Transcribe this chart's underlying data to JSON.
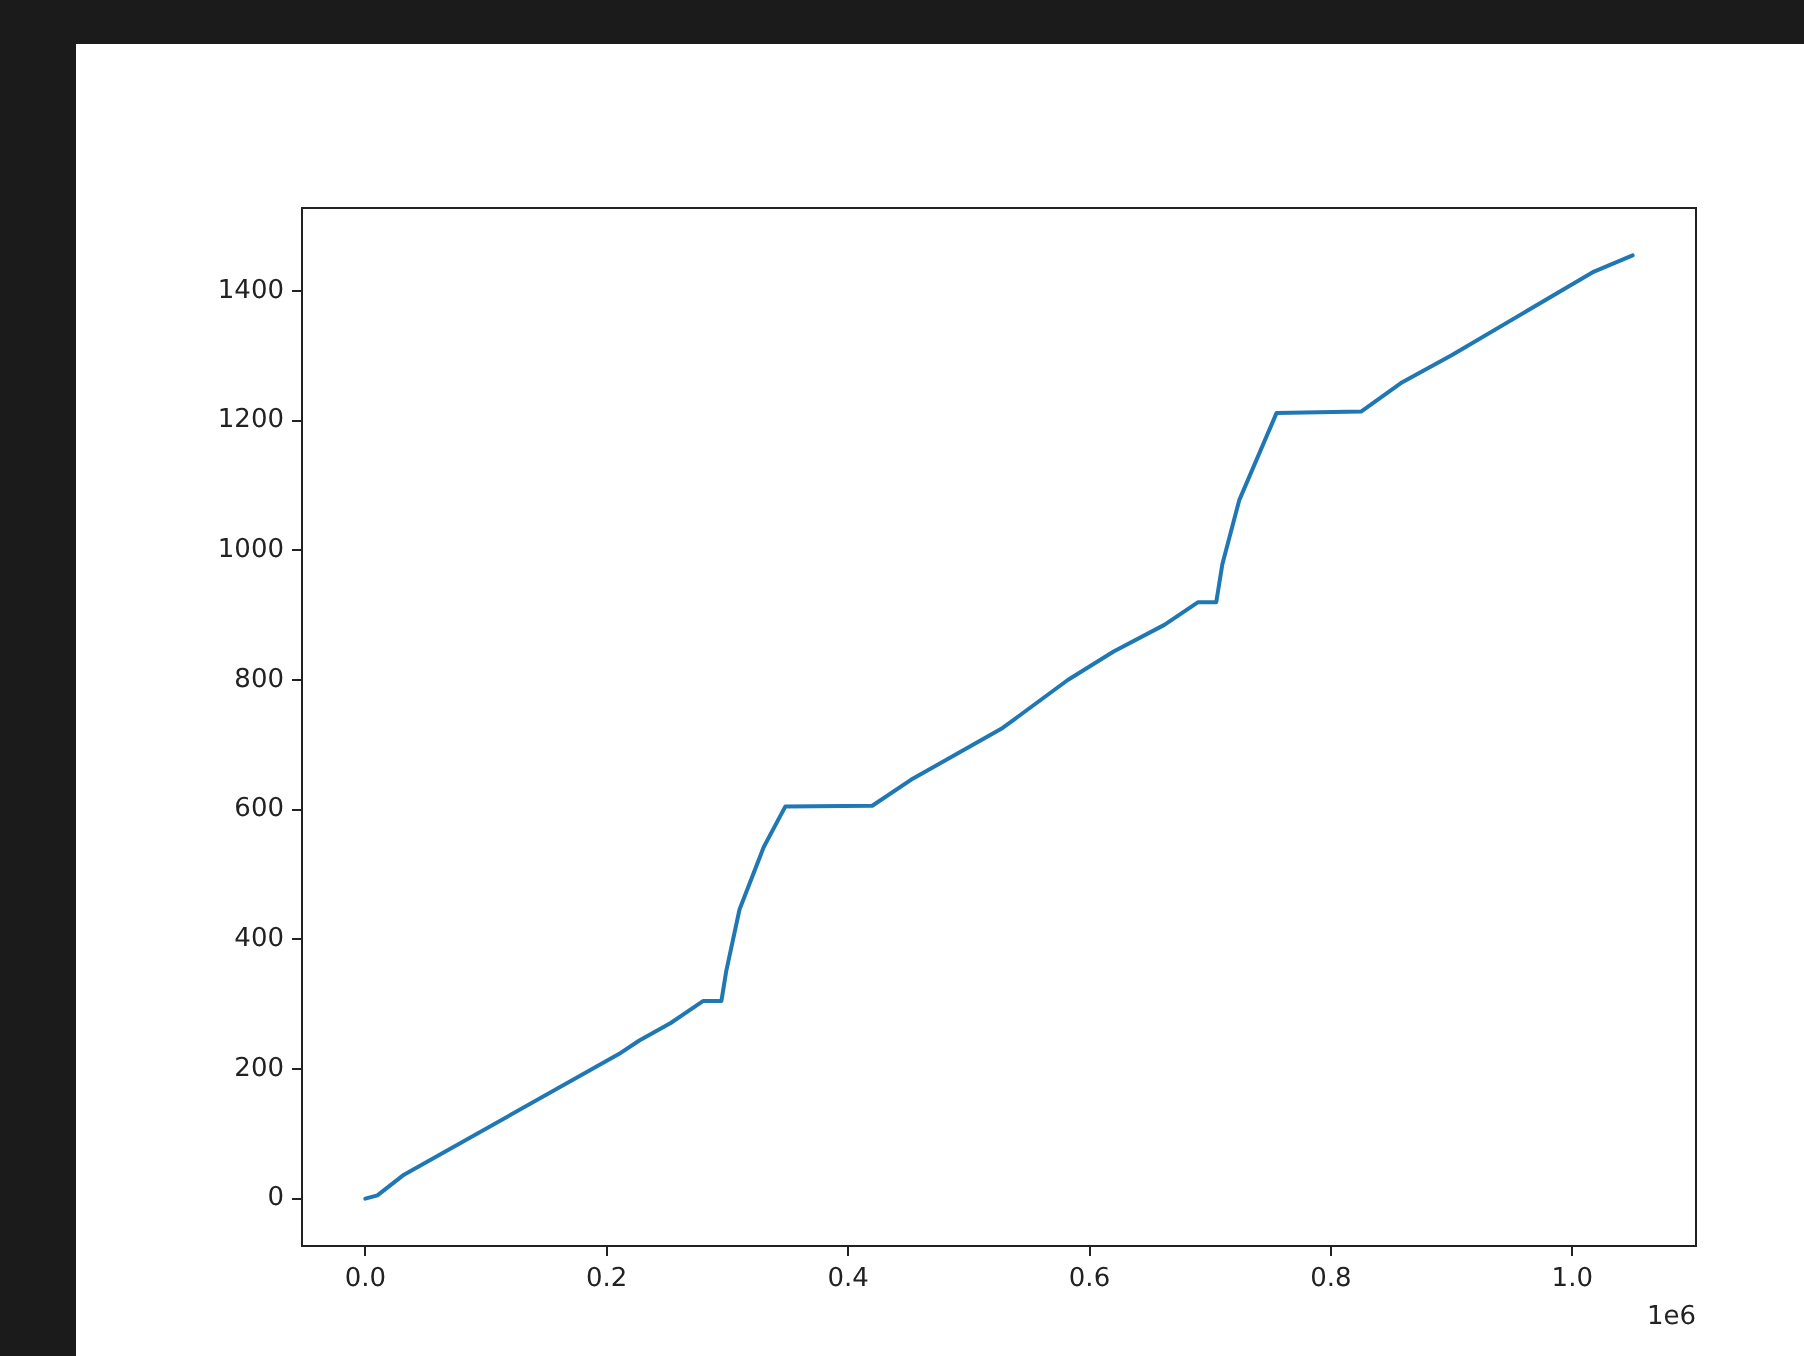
{
  "chart_data": {
    "type": "line",
    "x": [
      0,
      0.01,
      0.032,
      0.21,
      0.227,
      0.253,
      0.28,
      0.295,
      0.299,
      0.31,
      0.33,
      0.348,
      0.42,
      0.452,
      0.528,
      0.582,
      0.62,
      0.662,
      0.69,
      0.705,
      0.71,
      0.724,
      0.755,
      0.825,
      0.858,
      0.9,
      1.018,
      1.05
    ],
    "series": [
      {
        "color": "#1f77b4",
        "values": [
          0,
          5,
          37,
          223,
          244,
          271,
          305,
          305,
          351,
          446,
          542,
          605,
          606,
          646,
          726,
          800,
          844,
          885,
          920,
          920,
          978,
          1077,
          1212,
          1214,
          1258,
          1301,
          1430,
          1455
        ]
      }
    ],
    "xlim": [
      -0.0525,
      1.1025
    ],
    "xticks": [
      {
        "value": 0,
        "label": "0.0"
      },
      0.2,
      0.4,
      0.6,
      0.8,
      {
        "value": 1,
        "label": "1.0"
      }
    ],
    "ylim": [
      -73,
      1528
    ],
    "yticks": [
      0,
      200,
      400,
      600,
      800,
      1000,
      1200,
      1400
    ],
    "annotations": [
      "1e6"
    ],
    "grid": false,
    "legend": false,
    "marker": "none",
    "line_style": "solid"
  }
}
